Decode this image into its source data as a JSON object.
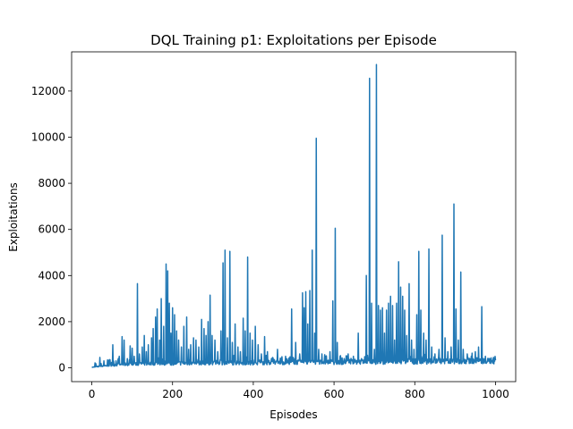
{
  "chart_data": {
    "type": "line",
    "title": "DQL Training p1: Exploitations per Episode",
    "xlabel": "Episodes",
    "ylabel": "Exploitations",
    "xlim": [
      -50,
      1050
    ],
    "ylim": [
      -600,
      13700
    ],
    "xticks": [
      0,
      200,
      400,
      600,
      800,
      1000
    ],
    "yticks": [
      0,
      2000,
      4000,
      6000,
      8000,
      10000,
      12000
    ],
    "grid": false,
    "series": [
      {
        "color": "#1f77b4",
        "base": [
          [
            0,
            20
          ],
          [
            50,
            120
          ],
          [
            100,
            160
          ],
          [
            150,
            180
          ],
          [
            200,
            190
          ],
          [
            250,
            200
          ],
          [
            300,
            210
          ],
          [
            350,
            210
          ],
          [
            400,
            210
          ],
          [
            450,
            220
          ],
          [
            500,
            230
          ],
          [
            550,
            240
          ],
          [
            600,
            240
          ],
          [
            650,
            250
          ],
          [
            700,
            250
          ],
          [
            750,
            260
          ],
          [
            800,
            260
          ],
          [
            850,
            270
          ],
          [
            900,
            270
          ],
          [
            950,
            280
          ],
          [
            1000,
            280
          ]
        ],
        "spikes": [
          [
            20,
            450
          ],
          [
            30,
            300
          ],
          [
            45,
            350
          ],
          [
            52,
            1000
          ],
          [
            60,
            300
          ],
          [
            68,
            500
          ],
          [
            75,
            1350
          ],
          [
            80,
            1200
          ],
          [
            88,
            400
          ],
          [
            95,
            950
          ],
          [
            100,
            850
          ],
          [
            105,
            500
          ],
          [
            113,
            3650
          ],
          [
            118,
            600
          ],
          [
            125,
            900
          ],
          [
            130,
            1400
          ],
          [
            135,
            700
          ],
          [
            140,
            1000
          ],
          [
            148,
            1300
          ],
          [
            152,
            1700
          ],
          [
            158,
            2200
          ],
          [
            162,
            2550
          ],
          [
            168,
            1200
          ],
          [
            172,
            3000
          ],
          [
            178,
            1800
          ],
          [
            184,
            4500
          ],
          [
            188,
            4200
          ],
          [
            192,
            2800
          ],
          [
            196,
            1500
          ],
          [
            200,
            2600
          ],
          [
            205,
            2300
          ],
          [
            210,
            1600
          ],
          [
            215,
            1200
          ],
          [
            222,
            900
          ],
          [
            228,
            1800
          ],
          [
            235,
            2200
          ],
          [
            240,
            800
          ],
          [
            245,
            1000
          ],
          [
            252,
            1300
          ],
          [
            258,
            1200
          ],
          [
            265,
            900
          ],
          [
            272,
            2100
          ],
          [
            278,
            1700
          ],
          [
            283,
            1400
          ],
          [
            288,
            2000
          ],
          [
            293,
            3150
          ],
          [
            298,
            1400
          ],
          [
            305,
            1200
          ],
          [
            312,
            700
          ],
          [
            320,
            1600
          ],
          [
            325,
            4550
          ],
          [
            330,
            5100
          ],
          [
            336,
            1300
          ],
          [
            342,
            5050
          ],
          [
            348,
            1100
          ],
          [
            355,
            1900
          ],
          [
            362,
            900
          ],
          [
            368,
            700
          ],
          [
            375,
            2150
          ],
          [
            380,
            1600
          ],
          [
            386,
            4800
          ],
          [
            392,
            1500
          ],
          [
            398,
            1200
          ],
          [
            405,
            1800
          ],
          [
            412,
            1000
          ],
          [
            420,
            600
          ],
          [
            428,
            1350
          ],
          [
            435,
            700
          ],
          [
            445,
            400
          ],
          [
            460,
            800
          ],
          [
            470,
            350
          ],
          [
            480,
            500
          ],
          [
            495,
            2550
          ],
          [
            505,
            1100
          ],
          [
            515,
            600
          ],
          [
            522,
            3250
          ],
          [
            526,
            2600
          ],
          [
            530,
            3300
          ],
          [
            535,
            1900
          ],
          [
            540,
            3350
          ],
          [
            546,
            5100
          ],
          [
            552,
            1500
          ],
          [
            556,
            9950
          ],
          [
            562,
            800
          ],
          [
            570,
            600
          ],
          [
            580,
            500
          ],
          [
            590,
            700
          ],
          [
            597,
            2900
          ],
          [
            603,
            6050
          ],
          [
            608,
            1100
          ],
          [
            615,
            500
          ],
          [
            625,
            400
          ],
          [
            635,
            600
          ],
          [
            648,
            500
          ],
          [
            660,
            1500
          ],
          [
            668,
            400
          ],
          [
            680,
            4000
          ],
          [
            688,
            12550
          ],
          [
            693,
            2800
          ],
          [
            700,
            800
          ],
          [
            705,
            13150
          ],
          [
            710,
            2700
          ],
          [
            715,
            2500
          ],
          [
            720,
            2600
          ],
          [
            725,
            1500
          ],
          [
            730,
            2500
          ],
          [
            735,
            2800
          ],
          [
            740,
            3100
          ],
          [
            745,
            2700
          ],
          [
            750,
            1200
          ],
          [
            755,
            2800
          ],
          [
            760,
            4600
          ],
          [
            765,
            3500
          ],
          [
            770,
            3100
          ],
          [
            775,
            2500
          ],
          [
            780,
            1400
          ],
          [
            786,
            3650
          ],
          [
            792,
            1200
          ],
          [
            798,
            800
          ],
          [
            805,
            2300
          ],
          [
            810,
            5050
          ],
          [
            815,
            2500
          ],
          [
            822,
            1500
          ],
          [
            828,
            1200
          ],
          [
            835,
            5150
          ],
          [
            842,
            900
          ],
          [
            850,
            600
          ],
          [
            860,
            800
          ],
          [
            868,
            5750
          ],
          [
            875,
            1300
          ],
          [
            882,
            700
          ],
          [
            890,
            900
          ],
          [
            897,
            7100
          ],
          [
            902,
            2550
          ],
          [
            908,
            1200
          ],
          [
            914,
            4150
          ],
          [
            920,
            800
          ],
          [
            930,
            600
          ],
          [
            940,
            500
          ],
          [
            950,
            700
          ],
          [
            958,
            900
          ],
          [
            966,
            2650
          ],
          [
            975,
            500
          ],
          [
            985,
            400
          ],
          [
            995,
            450
          ]
        ]
      }
    ]
  }
}
